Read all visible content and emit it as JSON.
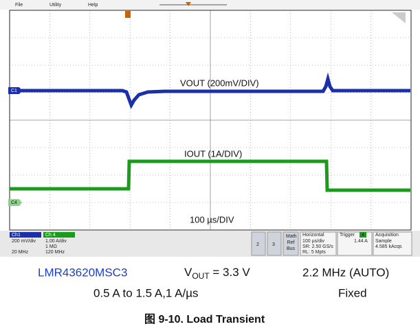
{
  "menu": [
    "File",
    "Utility",
    "Help"
  ],
  "screen": {
    "channel_markers": [
      "C1",
      "C4"
    ],
    "annotations": {
      "vout": "VOUT (200mV/DIV)",
      "iout": "IOUT (1A/DIV)",
      "timebase": "100 µs/DIV"
    }
  },
  "status_bar": {
    "ch1": {
      "name": "Ch1",
      "lines": [
        "200 mV/div",
        "20 MHz"
      ]
    },
    "ch4": {
      "name": "Ch 4",
      "lines": [
        "1.00 A/div",
        "1 MΩ",
        "120 MHz"
      ]
    },
    "buttons": [
      "2",
      "3",
      "Math Ref Bus"
    ],
    "horizontal": {
      "title": "Horizontal",
      "lines": [
        "100 µs/div",
        "SR: 2.50 GS/s",
        "RL: 5 Mpts"
      ]
    },
    "trigger": {
      "title": "Trigger",
      "source": "4",
      "level": "1.44 A"
    },
    "acquisition": {
      "title": "Acquisition",
      "lines": [
        "Sample",
        "4.585 kAcqs"
      ]
    }
  },
  "caption": {
    "device": "LMR43620MSC3",
    "vout_symbol": "V",
    "vout_subscript": "OUT",
    "vout_value": " = 3.3 V",
    "frequency": "2.2 MHz (AUTO)",
    "load_step": "0.5 A to 1.5 A,1 A/µs",
    "mode": "Fixed",
    "figure": "图 9-10. Load Transient"
  }
}
